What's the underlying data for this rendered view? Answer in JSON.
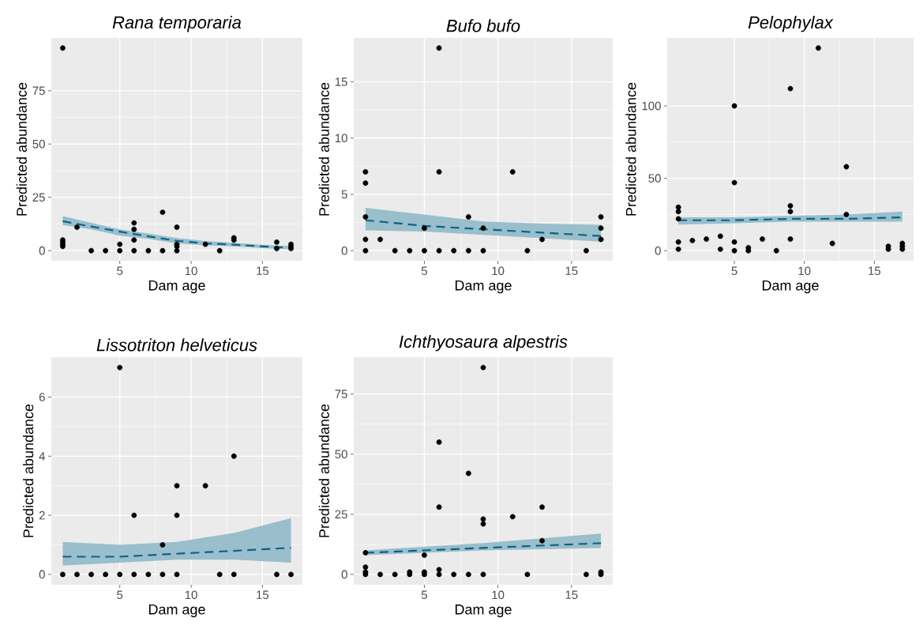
{
  "chart_data": [
    {
      "type": "scatter",
      "title": "Rana temporaria",
      "xlabel": "Dam age",
      "ylabel": "Predicted abundance",
      "xlim": [
        0.2,
        17.8
      ],
      "ylim": [
        -4.75,
        99.75
      ],
      "xticks": [
        5,
        10,
        15
      ],
      "yticks": [
        0,
        25,
        50,
        75
      ],
      "grid": true,
      "series": [
        {
          "marker": "circle",
          "color": "#000000",
          "x": [
            1,
            1,
            1,
            1,
            1,
            2,
            3,
            4,
            5,
            5,
            6,
            6,
            6,
            6,
            7,
            8,
            8,
            9,
            9,
            9,
            9,
            11,
            12,
            13,
            13,
            16,
            16,
            17,
            17,
            17
          ],
          "values": [
            95,
            5,
            4,
            3,
            2,
            11,
            0,
            0,
            0,
            3,
            0,
            5,
            10,
            13,
            0,
            0,
            18,
            0,
            2,
            3,
            11,
            3,
            0,
            6,
            5,
            4,
            1,
            3,
            2,
            1
          ]
        },
        {
          "type": "line",
          "marker": "none",
          "line_style": "dashed",
          "color": "#0b6485",
          "x": [
            1,
            3,
            5,
            7,
            9,
            11,
            13,
            15,
            17
          ],
          "values": [
            13.8,
            11.3,
            8.9,
            6.7,
            4.6,
            3.4,
            2.8,
            2,
            1.3
          ],
          "lower": [
            12,
            10,
            7,
            5.5,
            3.4,
            2.5,
            2,
            1.2,
            0.6
          ],
          "upper": [
            16.2,
            13,
            10,
            8,
            5.9,
            4.5,
            3.7,
            2.8,
            2.2
          ]
        }
      ]
    },
    {
      "type": "scatter",
      "title": "Bufo bufo",
      "xlabel": "Dam age",
      "ylabel": "Predicted abundance",
      "xlim": [
        0.2,
        17.8
      ],
      "ylim": [
        -0.9,
        18.9
      ],
      "xticks": [
        5,
        10,
        15
      ],
      "yticks": [
        0,
        5,
        10,
        15
      ],
      "grid": true,
      "series": [
        {
          "marker": "circle",
          "color": "#000000",
          "x": [
            1,
            1,
            1,
            1,
            1,
            2,
            3,
            4,
            5,
            5,
            6,
            6,
            6,
            7,
            8,
            8,
            9,
            9,
            11,
            12,
            13,
            16,
            17,
            17,
            17
          ],
          "values": [
            7,
            6,
            3,
            1,
            0,
            1,
            0,
            0,
            0,
            2,
            18,
            7,
            0,
            0,
            3,
            0,
            2,
            0,
            7,
            0,
            1,
            0,
            3,
            2,
            1
          ]
        },
        {
          "type": "line",
          "marker": "none",
          "line_style": "dashed",
          "color": "#0b6485",
          "x": [
            1,
            5,
            9,
            13,
            17
          ],
          "values": [
            2.7,
            2.2,
            1.9,
            1.6,
            1.3
          ],
          "lower": [
            1.8,
            1.7,
            1.4,
            1.1,
            0.8
          ],
          "upper": [
            3.8,
            3.2,
            2.6,
            2.4,
            2.3
          ]
        }
      ]
    },
    {
      "type": "scatter",
      "title": "Pelophylax",
      "xlabel": "Dam age",
      "ylabel": "Predicted abundance",
      "xlim": [
        0.2,
        17.8
      ],
      "ylim": [
        -7,
        147
      ],
      "xticks": [
        5,
        10,
        15
      ],
      "yticks": [
        0,
        50,
        100
      ],
      "grid": true,
      "series": [
        {
          "marker": "circle",
          "color": "#000000",
          "x": [
            1,
            1,
            1,
            1,
            1,
            2,
            3,
            4,
            4,
            5,
            5,
            5,
            5,
            6,
            6,
            7,
            8,
            9,
            9,
            9,
            9,
            11,
            12,
            13,
            13,
            16,
            16,
            17,
            17,
            17
          ],
          "values": [
            30,
            27,
            22,
            6,
            1,
            7,
            8,
            10,
            1,
            100,
            47,
            6,
            0,
            2,
            0,
            8,
            0,
            112,
            31,
            27,
            8,
            140,
            5,
            58,
            25,
            3,
            1,
            5,
            3,
            1
          ]
        },
        {
          "type": "line",
          "marker": "none",
          "line_style": "dashed",
          "color": "#0b6485",
          "x": [
            1,
            5,
            9,
            13,
            17
          ],
          "values": [
            21,
            21,
            22,
            22,
            23
          ],
          "lower": [
            18,
            19,
            20,
            20,
            20
          ],
          "upper": [
            23,
            23,
            24,
            25,
            27
          ]
        }
      ]
    },
    {
      "type": "scatter",
      "title": "Lissotriton helveticus",
      "xlabel": "Dam age",
      "ylabel": "Predicted abundance",
      "xlim": [
        0.2,
        17.8
      ],
      "ylim": [
        -0.35,
        7.35
      ],
      "xticks": [
        5,
        10,
        15
      ],
      "yticks": [
        0,
        2,
        4,
        6
      ],
      "grid": true,
      "series": [
        {
          "marker": "circle",
          "color": "#000000",
          "x": [
            1,
            2,
            3,
            4,
            5,
            5,
            6,
            6,
            7,
            8,
            8,
            9,
            9,
            9,
            11,
            12,
            13,
            13,
            16,
            17
          ],
          "values": [
            0,
            0,
            0,
            0,
            0,
            7,
            0,
            2,
            0,
            0,
            1,
            0,
            2,
            3,
            3,
            0,
            0,
            4,
            0,
            0
          ]
        },
        {
          "type": "line",
          "marker": "none",
          "line_style": "dashed",
          "color": "#0b6485",
          "x": [
            1,
            5,
            9,
            13,
            17
          ],
          "values": [
            0.6,
            0.6,
            0.7,
            0.8,
            0.9
          ],
          "lower": [
            0.3,
            0.4,
            0.5,
            0.5,
            0.4
          ],
          "upper": [
            1.1,
            1.0,
            1.1,
            1.4,
            1.9
          ]
        }
      ]
    },
    {
      "type": "scatter",
      "title": "Ichthyosaura alpestris",
      "xlabel": "Dam age",
      "ylabel": "Predicted abundance",
      "xlim": [
        0.2,
        17.8
      ],
      "ylim": [
        -4.3,
        90.3
      ],
      "xticks": [
        5,
        10,
        15
      ],
      "yticks": [
        0,
        25,
        50,
        75
      ],
      "grid": true,
      "series": [
        {
          "marker": "circle",
          "color": "#000000",
          "x": [
            1,
            1,
            1,
            1,
            2,
            3,
            4,
            4,
            5,
            5,
            5,
            6,
            6,
            6,
            6,
            7,
            8,
            8,
            9,
            9,
            9,
            9,
            11,
            12,
            13,
            13,
            16,
            17,
            17
          ],
          "values": [
            9,
            3,
            1,
            0,
            0,
            0,
            1,
            0,
            8,
            1,
            0,
            55,
            28,
            2,
            0,
            0,
            42,
            0,
            86,
            23,
            21,
            0,
            24,
            0,
            28,
            14,
            0,
            1,
            0
          ]
        },
        {
          "type": "line",
          "marker": "none",
          "line_style": "dashed",
          "color": "#0b6485",
          "x": [
            1,
            9,
            17
          ],
          "values": [
            9,
            11,
            13
          ],
          "lower": [
            8,
            10,
            11
          ],
          "upper": [
            10,
            13,
            17
          ]
        }
      ]
    }
  ]
}
